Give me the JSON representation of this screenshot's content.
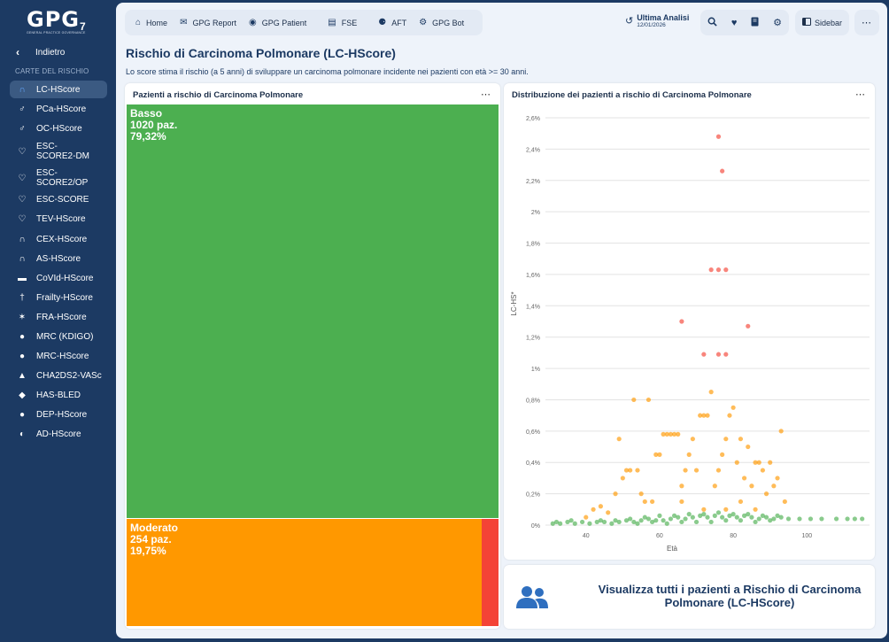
{
  "app": {
    "logo_text": "GPG",
    "logo_sub": "GENERAL PRACTICE GOVERNANCE",
    "logo_version": "7"
  },
  "sidebar": {
    "back_label": "Indietro",
    "section_label": "CARTE DEL RISCHIO",
    "items": [
      {
        "label": "LC-HScore",
        "icon": "lung-icon",
        "active": true
      },
      {
        "label": "PCa-HScore",
        "icon": "male-icon"
      },
      {
        "label": "OC-HScore",
        "icon": "male-icon"
      },
      {
        "label": "ESC-SCORE2-DM",
        "icon": "heartbeat-icon"
      },
      {
        "label": "ESC-SCORE2/OP",
        "icon": "heartbeat-icon"
      },
      {
        "label": "ESC-SCORE",
        "icon": "heartbeat-icon"
      },
      {
        "label": "TEV-HScore",
        "icon": "heartbeat-icon"
      },
      {
        "label": "CEX-HScore",
        "icon": "lungs-icon"
      },
      {
        "label": "AS-HScore",
        "icon": "lungs-icon"
      },
      {
        "label": "CoVId-HScore",
        "icon": "bed-icon"
      },
      {
        "label": "Frailty-HScore",
        "icon": "walker-icon"
      },
      {
        "label": "FRA-HScore",
        "icon": "bone-icon"
      },
      {
        "label": "MRC (KDIGO)",
        "icon": "kidney-icon"
      },
      {
        "label": "MRC-HScore",
        "icon": "kidney-icon"
      },
      {
        "label": "CHA2DS2-VASc",
        "icon": "person-icon"
      },
      {
        "label": "HAS-BLED",
        "icon": "drop-icon"
      },
      {
        "label": "DEP-HScore",
        "icon": "speech-icon"
      },
      {
        "label": "AD-HScore",
        "icon": "brain-icon"
      }
    ]
  },
  "topnav": {
    "items": [
      {
        "label": "Home",
        "icon": "home-icon"
      },
      {
        "label": "GPG Report",
        "icon": "envelope-icon"
      },
      {
        "label": "GPG Patient",
        "icon": "user-circle-icon"
      },
      {
        "label": "FSE",
        "icon": "document-icon"
      },
      {
        "label": "AFT",
        "icon": "group-icon"
      },
      {
        "label": "GPG Bot",
        "icon": "robot-icon"
      }
    ],
    "last_analysis_label": "Ultima Analisi",
    "last_analysis_date": "12/01/2026",
    "sidebar_label": "Sidebar"
  },
  "page": {
    "title": "Rischio di Carcinoma Polmonare (LC-HScore)",
    "subtitle": "Lo score stima il rischio (a 5 anni) di sviluppare un carcinoma polmonare incidente nei pazienti con età >= 30 anni."
  },
  "treemap": {
    "title": "Pazienti a rischio di Carcinoma Polmonare",
    "segments": [
      {
        "name": "Basso",
        "patients": "1020 paz.",
        "percent": "79,32%",
        "color": "#4caf50",
        "share": 0.7932
      },
      {
        "name": "Moderato",
        "patients": "254 paz.",
        "percent": "19,75%",
        "color": "#ff9800",
        "share": 0.1975
      },
      {
        "name": "",
        "patients": "",
        "percent": "",
        "color": "#f44336",
        "share": 0.0093
      }
    ]
  },
  "scatter": {
    "title": "Distribuzione dei pazienti a rischio di Carcinoma Polmonare"
  },
  "chart_data": {
    "type": "scatter",
    "title": "Distribuzione dei pazienti a rischio di Carcinoma Polmonare",
    "xlabel": "Età",
    "ylabel": "LC-HS*",
    "xlim": [
      29,
      117
    ],
    "ylim": [
      0,
      2.6
    ],
    "x_ticks": [
      "40",
      "60",
      "80",
      "100"
    ],
    "y_ticks": [
      "0%",
      "0,2%",
      "0,4%",
      "0,6%",
      "0,8%",
      "1%",
      "1,2%",
      "1,4%",
      "1,6%",
      "1,8%",
      "2%",
      "2,2%",
      "2,4%",
      "2,6%"
    ],
    "grid": true,
    "series": [
      {
        "color": "#4caf50",
        "points": [
          [
            31,
            0.01
          ],
          [
            33,
            0.01
          ],
          [
            35,
            0.02
          ],
          [
            37,
            0.01
          ],
          [
            39,
            0.02
          ],
          [
            41,
            0.01
          ],
          [
            43,
            0.02
          ],
          [
            45,
            0.02
          ],
          [
            47,
            0.01
          ],
          [
            49,
            0.02
          ],
          [
            51,
            0.03
          ],
          [
            53,
            0.02
          ],
          [
            55,
            0.03
          ],
          [
            57,
            0.04
          ],
          [
            59,
            0.03
          ],
          [
            61,
            0.03
          ],
          [
            63,
            0.04
          ],
          [
            65,
            0.05
          ],
          [
            67,
            0.04
          ],
          [
            69,
            0.05
          ],
          [
            71,
            0.06
          ],
          [
            73,
            0.05
          ],
          [
            75,
            0.06
          ],
          [
            77,
            0.05
          ],
          [
            79,
            0.06
          ],
          [
            81,
            0.05
          ],
          [
            83,
            0.06
          ],
          [
            85,
            0.05
          ],
          [
            87,
            0.04
          ],
          [
            89,
            0.05
          ],
          [
            91,
            0.04
          ],
          [
            93,
            0.05
          ],
          [
            95,
            0.04
          ],
          [
            98,
            0.04
          ],
          [
            101,
            0.04
          ],
          [
            104,
            0.04
          ],
          [
            108,
            0.04
          ],
          [
            111,
            0.04
          ],
          [
            113,
            0.04
          ],
          [
            115,
            0.04
          ],
          [
            32,
            0.02
          ],
          [
            36,
            0.03
          ],
          [
            44,
            0.03
          ],
          [
            48,
            0.03
          ],
          [
            52,
            0.04
          ],
          [
            56,
            0.05
          ],
          [
            60,
            0.06
          ],
          [
            64,
            0.06
          ],
          [
            68,
            0.07
          ],
          [
            72,
            0.07
          ],
          [
            76,
            0.08
          ],
          [
            80,
            0.07
          ],
          [
            84,
            0.07
          ],
          [
            88,
            0.06
          ],
          [
            92,
            0.06
          ],
          [
            54,
            0.01
          ],
          [
            58,
            0.02
          ],
          [
            62,
            0.01
          ],
          [
            66,
            0.02
          ],
          [
            70,
            0.02
          ],
          [
            74,
            0.02
          ],
          [
            78,
            0.03
          ],
          [
            82,
            0.03
          ],
          [
            86,
            0.02
          ],
          [
            90,
            0.03
          ]
        ]
      },
      {
        "color": "#ff9800",
        "points": [
          [
            40,
            0.05
          ],
          [
            42,
            0.1
          ],
          [
            44,
            0.12
          ],
          [
            46,
            0.08
          ],
          [
            48,
            0.2
          ],
          [
            49,
            0.55
          ],
          [
            50,
            0.3
          ],
          [
            51,
            0.35
          ],
          [
            52,
            0.35
          ],
          [
            53,
            0.8
          ],
          [
            54,
            0.35
          ],
          [
            55,
            0.2
          ],
          [
            56,
            0.15
          ],
          [
            57,
            0.8
          ],
          [
            58,
            0.15
          ],
          [
            59,
            0.45
          ],
          [
            60,
            0.45
          ],
          [
            61,
            0.58
          ],
          [
            62,
            0.58
          ],
          [
            63,
            0.58
          ],
          [
            64,
            0.58
          ],
          [
            65,
            0.58
          ],
          [
            66,
            0.25
          ],
          [
            67,
            0.35
          ],
          [
            68,
            0.45
          ],
          [
            69,
            0.55
          ],
          [
            70,
            0.35
          ],
          [
            71,
            0.7
          ],
          [
            72,
            0.7
          ],
          [
            73,
            0.7
          ],
          [
            74,
            0.85
          ],
          [
            75,
            0.25
          ],
          [
            76,
            0.35
          ],
          [
            77,
            0.45
          ],
          [
            78,
            0.55
          ],
          [
            79,
            0.7
          ],
          [
            80,
            0.75
          ],
          [
            81,
            0.4
          ],
          [
            82,
            0.55
          ],
          [
            83,
            0.3
          ],
          [
            84,
            0.5
          ],
          [
            85,
            0.25
          ],
          [
            86,
            0.4
          ],
          [
            87,
            0.4
          ],
          [
            88,
            0.35
          ],
          [
            89,
            0.2
          ],
          [
            90,
            0.4
          ],
          [
            91,
            0.25
          ],
          [
            92,
            0.3
          ],
          [
            93,
            0.6
          ],
          [
            94,
            0.15
          ],
          [
            78,
            0.1
          ],
          [
            72,
            0.1
          ],
          [
            66,
            0.15
          ],
          [
            82,
            0.15
          ],
          [
            86,
            0.1
          ]
        ]
      },
      {
        "color": "#f44336",
        "points": [
          [
            76,
            2.48
          ],
          [
            77,
            2.26
          ],
          [
            74,
            1.63
          ],
          [
            76,
            1.63
          ],
          [
            78,
            1.63
          ],
          [
            66,
            1.3
          ],
          [
            84,
            1.27
          ],
          [
            72,
            1.09
          ],
          [
            76,
            1.09
          ],
          [
            78,
            1.09
          ]
        ]
      }
    ]
  },
  "cta": {
    "text": "Visualizza tutti i pazienti a Rischio di Carcinoma Polmonare (LC-HScore)"
  }
}
